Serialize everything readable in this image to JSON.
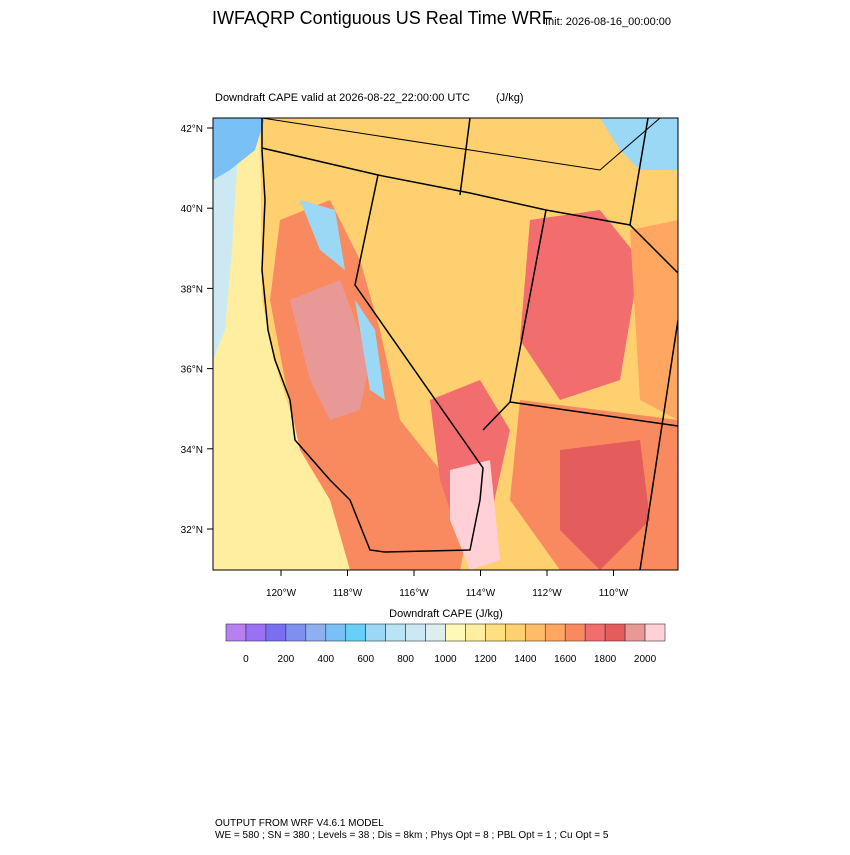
{
  "header": {
    "title": "IWFAQRP Contiguous US Real Time WRF",
    "init": "Init: 2026-08-16_00:00:00"
  },
  "map": {
    "subtitle": "Downdraft CAPE valid at 2026-08-22_22:00:00 UTC",
    "units": "(J/kg)",
    "lat_labels": [
      "42°N",
      "40°N",
      "38°N",
      "36°N",
      "34°N",
      "32°N"
    ],
    "lon_labels": [
      "120°W",
      "118°W",
      "116°W",
      "114°W",
      "112°W",
      "110°W"
    ]
  },
  "colorbar": {
    "title": "Downdraft CAPE  (J/kg)",
    "colors": [
      "#b77ff0",
      "#9a70f5",
      "#7a6ff0",
      "#7f8ff0",
      "#8fb0f0",
      "#78c0f5",
      "#68d0f8",
      "#9ad8f5",
      "#b8e4f5",
      "#cce9f3",
      "#dcefee",
      "#fff9b8",
      "#ffeea0",
      "#ffe080",
      "#ffd070",
      "#ffbc66",
      "#ffa660",
      "#f98a60",
      "#f26d6d",
      "#e55c5c",
      "#e99898",
      "#ffd0d5"
    ],
    "labels": [
      "0",
      "200",
      "400",
      "600",
      "800",
      "1000",
      "1200",
      "1400",
      "1600",
      "1800",
      "2000"
    ]
  },
  "footer": {
    "line1": "OUTPUT FROM WRF V4.6.1 MODEL",
    "line2": "WE = 580 ; SN = 380 ; Levels = 38 ; Dis = 8km ; Phys Opt = 8 ; PBL Opt = 1 ; Cu Opt = 5"
  }
}
